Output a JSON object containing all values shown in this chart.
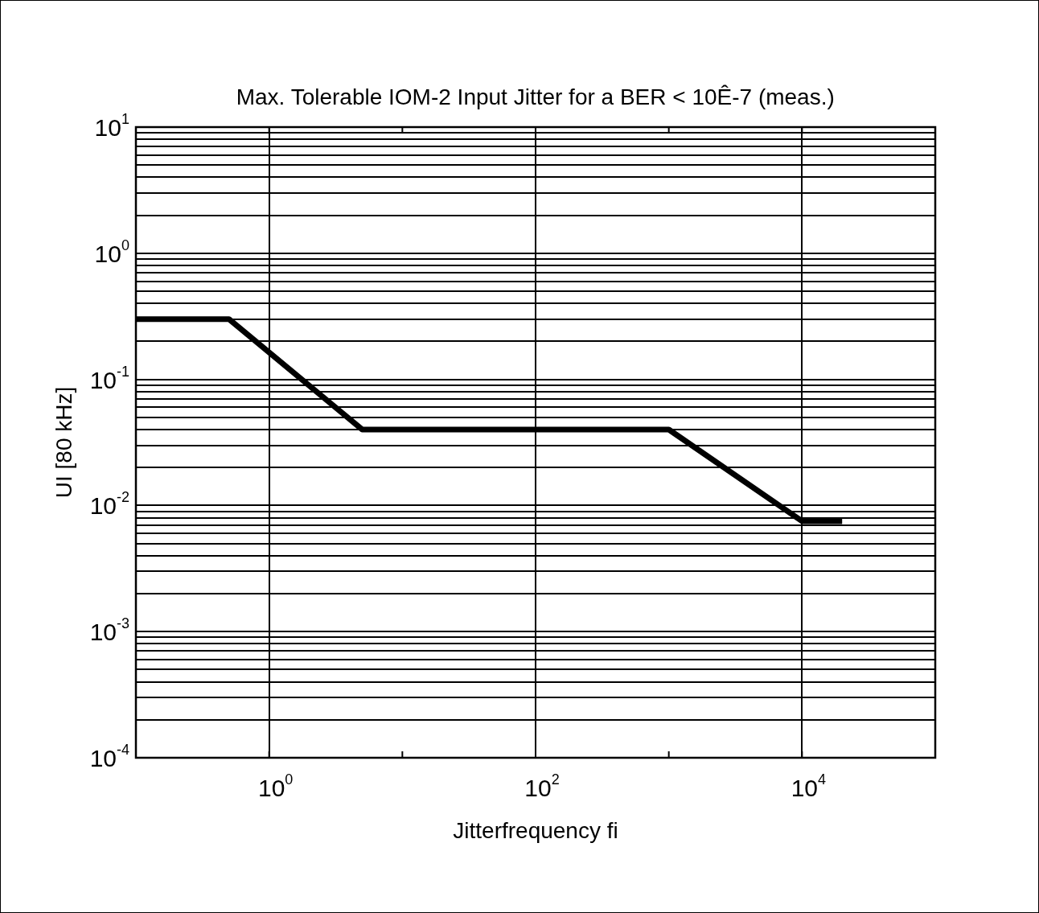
{
  "chart_data": {
    "type": "line",
    "title": "Max. Tolerable IOM-2 Input Jitter for a BER < 10Ê-7 (meas.)",
    "xlabel": "Jitterfrequency fi",
    "ylabel": "UI [80 kHz]",
    "x": [
      0.1,
      0.5,
      5,
      1000,
      10000,
      20000
    ],
    "series": [
      {
        "color": "#000000",
        "values": [
          0.3,
          0.3,
          0.04,
          0.04,
          0.0075,
          0.0075
        ]
      }
    ],
    "log": "xy",
    "grid": true,
    "legend": false,
    "marker": "none",
    "line_style": "solid",
    "xlim": [
      0.1,
      100000
    ],
    "xticks": [
      {
        "value": 1,
        "label": "10$^{0}$"
      },
      {
        "value": 10,
        "label": null
      },
      {
        "value": 100,
        "label": "10$^{2}$"
      },
      {
        "value": 1000,
        "label": null
      },
      {
        "value": 10000,
        "label": "10$^{4}$"
      }
    ],
    "ylim": [
      0.0001,
      10
    ],
    "yticks": [
      {
        "value": 0.0001,
        "label": "10$^{-4}$"
      },
      {
        "value": 0.0002,
        "label": null
      },
      {
        "value": 0.0003,
        "label": null
      },
      {
        "value": 0.0004,
        "label": null
      },
      {
        "value": 0.0005,
        "label": null
      },
      {
        "value": 0.0006,
        "label": null
      },
      {
        "value": 0.0007,
        "label": null
      },
      {
        "value": 0.0008,
        "label": null
      },
      {
        "value": 0.0009,
        "label": null
      },
      {
        "value": 0.001,
        "label": "10$^{-3}$"
      },
      {
        "value": 0.002,
        "label": null
      },
      {
        "value": 0.003,
        "label": null
      },
      {
        "value": 0.004,
        "label": null
      },
      {
        "value": 0.005,
        "label": null
      },
      {
        "value": 0.006,
        "label": null
      },
      {
        "value": 0.007,
        "label": null
      },
      {
        "value": 0.008,
        "label": null
      },
      {
        "value": 0.009,
        "label": null
      },
      {
        "value": 0.01,
        "label": "10$^{-2}$"
      },
      {
        "value": 0.02,
        "label": null
      },
      {
        "value": 0.03,
        "label": null
      },
      {
        "value": 0.04,
        "label": null
      },
      {
        "value": 0.05,
        "label": null
      },
      {
        "value": 0.06,
        "label": null
      },
      {
        "value": 0.07,
        "label": null
      },
      {
        "value": 0.08,
        "label": null
      },
      {
        "value": 0.09,
        "label": null
      },
      {
        "value": 0.1,
        "label": "10$^{-1}$"
      },
      {
        "value": 0.2,
        "label": null
      },
      {
        "value": 0.3,
        "label": null
      },
      {
        "value": 0.4,
        "label": null
      },
      {
        "value": 0.5,
        "label": null
      },
      {
        "value": 0.6,
        "label": null
      },
      {
        "value": 0.7,
        "label": null
      },
      {
        "value": 0.8,
        "label": null
      },
      {
        "value": 0.9,
        "label": null
      },
      {
        "value": 1,
        "label": "10$^{0}$"
      },
      {
        "value": 2,
        "label": null
      },
      {
        "value": 3,
        "label": null
      },
      {
        "value": 4,
        "label": null
      },
      {
        "value": 5,
        "label": null
      },
      {
        "value": 6,
        "label": null
      },
      {
        "value": 7,
        "label": null
      },
      {
        "value": 8,
        "label": null
      },
      {
        "value": 9,
        "label": null
      },
      {
        "value": 10,
        "label": "10$^{1}$"
      }
    ]
  }
}
